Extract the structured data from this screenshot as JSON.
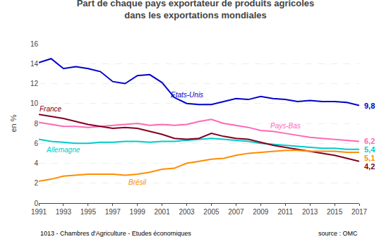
{
  "chart_data": {
    "type": "line",
    "title": "Part de chaque pays exportateur de produits agricoles\ndans les exportations mondiales",
    "ylabel": "en %",
    "x": [
      1991,
      1992,
      1993,
      1994,
      1995,
      1996,
      1997,
      1998,
      1999,
      2000,
      2001,
      2002,
      2003,
      2004,
      2005,
      2006,
      2007,
      2008,
      2009,
      2010,
      2011,
      2012,
      2013,
      2014,
      2015,
      2016,
      2017
    ],
    "series": [
      {
        "name": "Etats-Unis",
        "color": "#0000CC",
        "values": [
          14.1,
          14.5,
          13.5,
          13.7,
          13.5,
          13.2,
          12.2,
          12.0,
          12.8,
          12.9,
          12.1,
          10.6,
          10.0,
          9.9,
          9.9,
          10.2,
          10.5,
          10.4,
          10.7,
          10.5,
          10.4,
          10.2,
          10.3,
          10.2,
          10.2,
          10.1,
          9.8
        ],
        "value_labels": [
          null,
          null,
          null,
          null,
          null,
          null,
          null,
          null,
          null,
          null,
          null,
          null,
          null,
          null,
          null,
          null,
          null,
          null,
          null,
          null,
          null,
          null,
          null,
          null,
          null,
          null,
          "9,8"
        ]
      },
      {
        "name": "Pays-Bas",
        "color": "#FF69B4",
        "values": [
          8.1,
          7.9,
          7.7,
          7.7,
          7.6,
          7.7,
          7.8,
          7.9,
          8.0,
          7.8,
          7.9,
          7.8,
          7.9,
          8.2,
          8.4,
          8.0,
          7.8,
          7.6,
          7.3,
          7.2,
          7.0,
          6.8,
          6.6,
          6.5,
          6.4,
          6.3,
          6.2
        ],
        "value_labels": [
          null,
          null,
          null,
          null,
          null,
          null,
          null,
          null,
          null,
          null,
          null,
          null,
          null,
          null,
          null,
          null,
          null,
          null,
          null,
          null,
          null,
          null,
          null,
          null,
          null,
          null,
          "6,2"
        ]
      },
      {
        "name": "Allemagne",
        "color": "#00CCCC",
        "values": [
          6.4,
          6.2,
          6.1,
          6.0,
          6.0,
          6.1,
          6.1,
          6.2,
          6.2,
          6.1,
          6.2,
          6.2,
          6.3,
          6.4,
          6.5,
          6.4,
          6.3,
          6.2,
          6.0,
          5.9,
          5.8,
          5.7,
          5.6,
          5.5,
          5.5,
          5.4,
          5.4
        ],
        "value_labels": [
          null,
          null,
          null,
          null,
          null,
          null,
          null,
          null,
          null,
          null,
          null,
          null,
          null,
          null,
          null,
          null,
          null,
          null,
          null,
          null,
          null,
          null,
          null,
          null,
          null,
          null,
          "5,4"
        ]
      },
      {
        "name": "France",
        "color": "#800020",
        "values": [
          8.9,
          8.7,
          8.5,
          8.2,
          7.9,
          7.7,
          7.5,
          7.6,
          7.5,
          7.2,
          6.9,
          6.5,
          6.4,
          6.5,
          7.0,
          6.7,
          6.5,
          6.4,
          6.1,
          5.8,
          5.6,
          5.4,
          5.2,
          5.0,
          4.8,
          4.5,
          4.2
        ],
        "value_labels": [
          null,
          null,
          null,
          null,
          null,
          null,
          null,
          null,
          null,
          null,
          null,
          null,
          null,
          null,
          null,
          null,
          null,
          null,
          null,
          null,
          null,
          null,
          null,
          null,
          null,
          null,
          "4,2"
        ]
      },
      {
        "name": "Brésil",
        "color": "#FF8C00",
        "values": [
          2.2,
          2.4,
          2.7,
          2.8,
          2.9,
          2.9,
          2.9,
          2.8,
          2.9,
          3.1,
          3.4,
          3.5,
          4.0,
          4.2,
          4.4,
          4.5,
          4.8,
          5.0,
          5.1,
          5.2,
          5.3,
          5.3,
          5.2,
          5.2,
          5.2,
          5.1,
          5.1
        ],
        "value_labels": [
          null,
          null,
          null,
          null,
          null,
          null,
          null,
          null,
          null,
          null,
          null,
          null,
          null,
          null,
          null,
          null,
          null,
          null,
          null,
          null,
          null,
          null,
          null,
          null,
          null,
          null,
          "5,1"
        ]
      }
    ],
    "xlim": [
      1991,
      2017
    ],
    "xticks": [
      1991,
      1993,
      1995,
      1997,
      1999,
      2001,
      2003,
      2005,
      2007,
      2009,
      2011,
      2013,
      2015,
      2017
    ],
    "ylim": [
      0,
      16
    ],
    "yticks": [
      0,
      2,
      4,
      6,
      8,
      10,
      12,
      14,
      16
    ],
    "grid": true,
    "annotations": [
      "1013 - Chambres d'Agriculture - Etudes économiques",
      "source : OMC"
    ]
  }
}
